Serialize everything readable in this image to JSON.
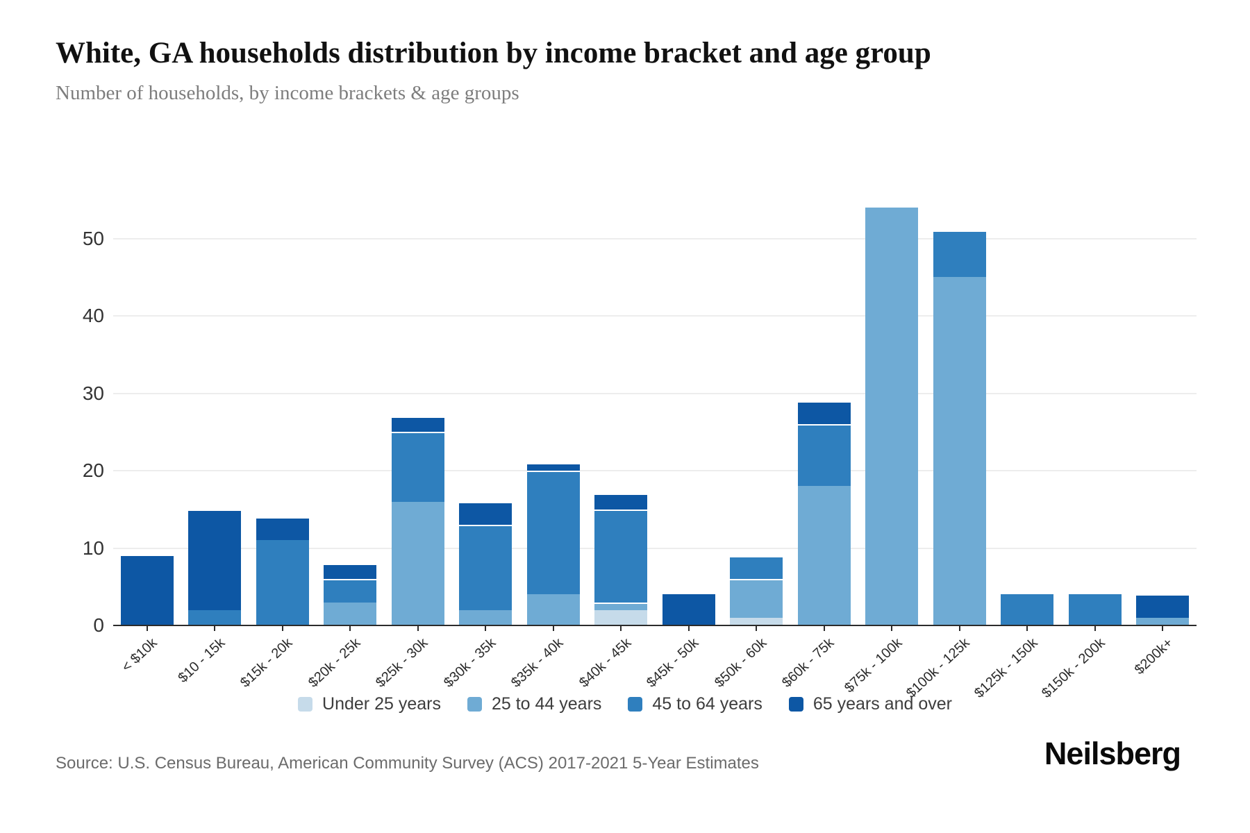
{
  "title": "White, GA households distribution by income bracket and age group",
  "subtitle": "Number of households, by income brackets & age groups",
  "source": "Source: U.S. Census Bureau, American Community Survey (ACS) 2017-2021 5-Year Estimates",
  "brand": "Neilsberg",
  "chart_data": {
    "type": "bar",
    "stacked": true,
    "title": "White, GA households distribution by income bracket and age group",
    "subtitle": "Number of households, by income brackets & age groups",
    "xlabel": "",
    "ylabel": "",
    "grid": true,
    "legend_position": "bottom",
    "yticks": [
      0,
      10,
      20,
      30,
      40,
      50
    ],
    "ylim": [
      0,
      56
    ],
    "categories": [
      "< $10k",
      "$10 - 15k",
      "$15k - 20k",
      "$20k - 25k",
      "$25k - 30k",
      "$30k - 35k",
      "$35k - 40k",
      "$40k - 45k",
      "$45k - 50k",
      "$50k - 60k",
      "$60k - 75k",
      "$75k - 100k",
      "$100k - 125k",
      "$125k - 150k",
      "$150k - 200k",
      "$200k+"
    ],
    "series": [
      {
        "name": "Under 25 years",
        "color": "#c6dbea",
        "values": [
          0,
          0,
          0,
          0,
          0,
          0,
          0,
          2,
          0,
          1,
          0,
          0,
          0,
          0,
          0,
          0
        ]
      },
      {
        "name": "25 to 44 years",
        "color": "#6fabd4",
        "values": [
          0,
          0,
          0,
          3,
          16,
          2,
          4,
          1,
          0,
          5,
          18,
          54,
          45,
          0,
          0,
          1
        ]
      },
      {
        "name": "45 to 64 years",
        "color": "#2f7fbe",
        "values": [
          0,
          2,
          11,
          3,
          9,
          11,
          16,
          12,
          0,
          3,
          8,
          0,
          6,
          4,
          4,
          0
        ]
      },
      {
        "name": "65 years and over",
        "color": "#0d57a4",
        "values": [
          9,
          13,
          3,
          2,
          2,
          3,
          1,
          2,
          4,
          0,
          3,
          0,
          0,
          0,
          0,
          3
        ]
      }
    ],
    "totals": [
      9,
      15,
      14,
      8,
      27,
      16,
      21,
      17,
      4,
      9,
      29,
      54,
      51,
      4,
      4,
      4
    ]
  }
}
